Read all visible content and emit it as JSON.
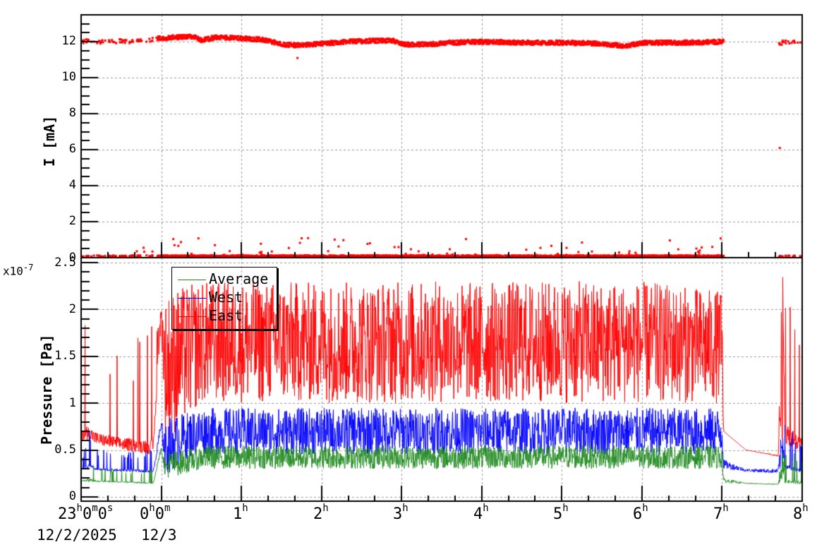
{
  "chart_data": [
    {
      "type": "scatter",
      "panel": "top",
      "title": "",
      "xlabel": "",
      "ylabel": "I [mA]",
      "ylim": [
        0,
        13.5
      ],
      "y_ticks": [
        "0",
        "2",
        "4",
        "6",
        "8",
        "10",
        "12"
      ],
      "x_range_hours": [
        -1,
        8
      ],
      "grid": true,
      "series": [
        {
          "name": "Current",
          "color": "#ff0000",
          "marker": "square",
          "description": "Beam current ~12 mA from 23:00 to 07:00 (slight dip to ~11.8 around 01:30–03:00 and 05:50), gap 07:00–07:40, resumes ~12 mA at 07:40; concurrent cluster of points near 0 mA with sporadic outliers up to ~1.1 mA; single outlier at ~6.1 mA near 07:42",
          "points_hours_vs_mA": [
            [
              -0.95,
              12.05
            ],
            [
              -0.8,
              12.0
            ],
            [
              -0.6,
              12.05
            ],
            [
              -0.4,
              12.0
            ],
            [
              -0.2,
              12.1
            ],
            [
              0.0,
              12.2
            ],
            [
              0.2,
              12.25
            ],
            [
              0.4,
              12.3
            ],
            [
              0.5,
              12.1
            ],
            [
              0.7,
              12.25
            ],
            [
              1.0,
              12.2
            ],
            [
              1.3,
              12.1
            ],
            [
              1.5,
              11.85
            ],
            [
              1.7,
              11.8
            ],
            [
              2.0,
              11.9
            ],
            [
              2.3,
              12.0
            ],
            [
              2.6,
              12.05
            ],
            [
              2.9,
              12.05
            ],
            [
              3.0,
              11.85
            ],
            [
              3.3,
              11.85
            ],
            [
              3.6,
              11.95
            ],
            [
              4.0,
              12.0
            ],
            [
              4.5,
              11.95
            ],
            [
              5.0,
              11.95
            ],
            [
              5.5,
              11.9
            ],
            [
              5.8,
              11.75
            ],
            [
              6.0,
              11.95
            ],
            [
              6.5,
              11.95
            ],
            [
              7.0,
              12.0
            ],
            [
              7.75,
              11.95
            ],
            [
              7.9,
              11.95
            ],
            [
              8.0,
              12.0
            ],
            [
              7.72,
              6.1
            ],
            [
              1.7,
              11.1
            ]
          ]
        }
      ]
    },
    {
      "type": "line",
      "panel": "bottom",
      "title": "",
      "xlabel": "",
      "ylabel": "Pressure [Pa]",
      "y_multiplier": "x10^-7",
      "ylim": [
        0,
        2.5
      ],
      "y_ticks": [
        "0",
        "0.5",
        "1",
        "1.5",
        "2",
        "2.5"
      ],
      "x_ticks": [
        "23h0m0s",
        "0h0m",
        "1h",
        "2h",
        "3h",
        "4h",
        "5h",
        "6h",
        "7h",
        "8h"
      ],
      "x_tick_dates": [
        "12/2/2025",
        "12/3"
      ],
      "x_range_hours": [
        -1,
        8
      ],
      "grid": true,
      "legend": {
        "position": "upper-left",
        "entries": [
          "Average",
          "West",
          "East"
        ]
      },
      "series": [
        {
          "name": "Average",
          "color": "#228b22",
          "x_hours": [
            -1.0,
            -0.9,
            -0.8,
            -0.5,
            -0.1,
            0.0,
            0.05,
            0.1,
            0.3,
            0.5,
            1.0,
            2.0,
            3.0,
            4.0,
            5.0,
            6.0,
            7.0,
            7.02,
            7.3,
            7.7,
            7.75,
            8.0
          ],
          "values_min": [
            0.17,
            0.16,
            0.16,
            0.15,
            0.14,
            0.5,
            0.2,
            0.2,
            0.25,
            0.3,
            0.3,
            0.3,
            0.3,
            0.3,
            0.3,
            0.3,
            0.3,
            0.15,
            0.14,
            0.13,
            0.15,
            0.13
          ],
          "values_max": [
            0.2,
            0.47,
            0.3,
            0.3,
            0.3,
            0.52,
            0.4,
            0.5,
            0.5,
            0.55,
            0.55,
            0.55,
            0.55,
            0.55,
            0.55,
            0.55,
            0.55,
            0.2,
            0.15,
            0.14,
            0.5,
            0.45
          ]
        },
        {
          "name": "West",
          "color": "#0000ff",
          "x_hours": [
            -1.0,
            -0.9,
            -0.8,
            -0.5,
            -0.1,
            0.0,
            0.05,
            0.1,
            0.3,
            0.5,
            1.0,
            2.0,
            3.0,
            4.0,
            5.0,
            6.0,
            7.0,
            7.02,
            7.3,
            7.7,
            7.75,
            8.0
          ],
          "values_min": [
            0.3,
            0.3,
            0.28,
            0.27,
            0.26,
            0.68,
            0.25,
            0.25,
            0.4,
            0.45,
            0.45,
            0.45,
            0.45,
            0.45,
            0.45,
            0.45,
            0.45,
            0.3,
            0.27,
            0.25,
            0.3,
            0.26
          ],
          "values_max": [
            0.35,
            0.75,
            0.5,
            0.5,
            0.5,
            0.8,
            0.75,
            0.85,
            0.9,
            0.95,
            0.95,
            0.95,
            0.95,
            0.95,
            0.95,
            0.95,
            0.95,
            0.4,
            0.3,
            0.3,
            0.8,
            0.6
          ]
        },
        {
          "name": "East",
          "color": "#ff0000",
          "x_hours": [
            -1.0,
            -0.9,
            -0.8,
            -0.5,
            -0.1,
            0.0,
            0.05,
            0.1,
            0.3,
            0.5,
            1.0,
            2.0,
            3.0,
            4.0,
            5.0,
            6.0,
            7.0,
            7.02,
            7.3,
            7.7,
            7.75,
            8.0
          ],
          "values_min": [
            0.6,
            0.6,
            0.55,
            0.5,
            0.45,
            1.9,
            0.5,
            0.6,
            0.8,
            1.0,
            1.0,
            1.0,
            1.0,
            1.0,
            1.0,
            1.0,
            1.0,
            0.7,
            0.5,
            0.43,
            0.6,
            0.45
          ],
          "values_max": [
            1.9,
            1.9,
            1.7,
            1.6,
            1.85,
            2.0,
            2.1,
            2.2,
            2.25,
            2.3,
            2.3,
            2.3,
            2.3,
            2.3,
            2.3,
            2.3,
            2.2,
            0.7,
            0.5,
            0.45,
            2.38,
            1.9
          ]
        }
      ]
    }
  ],
  "top_panel": {
    "ylabel": "I [mA]",
    "yticks": [
      "12",
      "10",
      "8",
      "6",
      "4",
      "2",
      "0"
    ]
  },
  "bottom_panel": {
    "ylabel": "Pressure [Pa]",
    "exponent_base": "x10",
    "exponent_power": "-7",
    "yticks": [
      "2.5",
      "2",
      "1.5",
      "1",
      "0.5",
      "0"
    ],
    "legend": {
      "items": [
        {
          "label": "Average",
          "color": "#228b22"
        },
        {
          "label": "West",
          "color": "#0000ff"
        },
        {
          "label": "East",
          "color": "#ff0000"
        }
      ]
    }
  },
  "x_axis": {
    "ticks": [
      {
        "main": "23",
        "sup": "h",
        "rest": [
          [
            "0",
            "m"
          ],
          [
            "0",
            "s"
          ]
        ]
      },
      {
        "main": "0",
        "sup": "h",
        "rest": [
          [
            "0",
            "m"
          ]
        ]
      },
      {
        "main": "1",
        "sup": "h",
        "rest": []
      },
      {
        "main": "2",
        "sup": "h",
        "rest": []
      },
      {
        "main": "3",
        "sup": "h",
        "rest": []
      },
      {
        "main": "4",
        "sup": "h",
        "rest": []
      },
      {
        "main": "5",
        "sup": "h",
        "rest": []
      },
      {
        "main": "6",
        "sup": "h",
        "rest": []
      },
      {
        "main": "7",
        "sup": "h",
        "rest": []
      },
      {
        "main": "8",
        "sup": "h",
        "rest": []
      }
    ],
    "date_start": "12/2/2025",
    "date_next": "12/3"
  },
  "colors": {
    "average": "#228b22",
    "west": "#0000ff",
    "east": "#ff0000",
    "current": "#ff0000",
    "grid": "#999999",
    "axis": "#000000"
  }
}
